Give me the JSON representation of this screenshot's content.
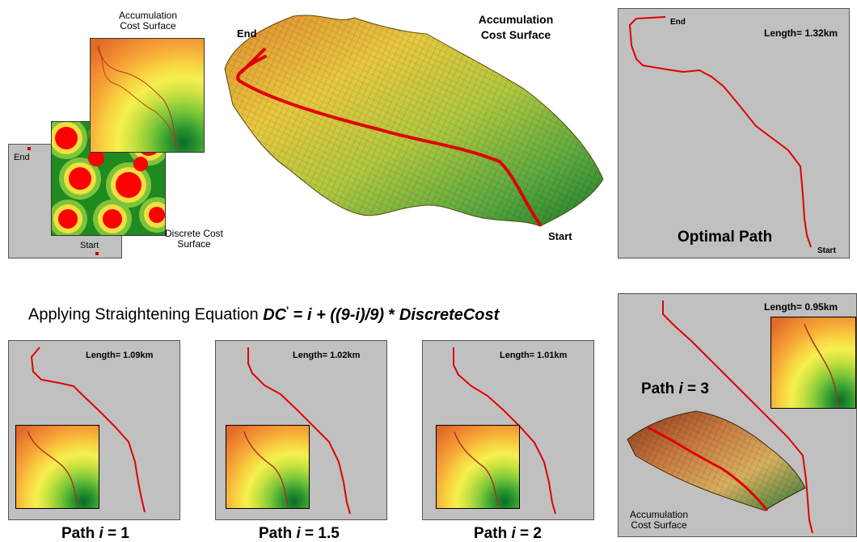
{
  "top": {
    "left_stack": {
      "accum_label": "Accumulation Cost Surface",
      "discrete_label": "Discrete Cost Surface",
      "end_label": "End",
      "start_label": "Start"
    },
    "surface3d": {
      "title": "Accumulation Cost Surface",
      "end_label": "End",
      "start_label": "Start"
    },
    "optimal": {
      "end_label": "End",
      "length": "Length= 1.32km",
      "caption": "Optimal Path",
      "start_label": "Start"
    }
  },
  "equation": {
    "prefix": "Applying Straightening Equation ",
    "lhs": "DC",
    "prime": "'",
    "eq": " = ",
    "i": "i",
    "rest": " + ((9-i)/9) ",
    "star": "* ",
    "dc": "DiscreteCost"
  },
  "bottom": [
    {
      "length": "Length= 1.09km",
      "caption_prefix": "Path ",
      "i": "i",
      "caption_suffix": " = 1"
    },
    {
      "length": "Length= 1.02km",
      "caption_prefix": "Path ",
      "i": "i",
      "caption_suffix": " = 1.5"
    },
    {
      "length": "Length= 1.01km",
      "caption_prefix": "Path ",
      "i": "i",
      "caption_suffix": " = 2"
    }
  ],
  "right_bottom": {
    "length": "Length= 0.95km",
    "caption_prefix": "Path ",
    "i": "i",
    "caption_suffix": " = 3",
    "surface_label": "Accumulation Cost Surface"
  },
  "colors": {
    "panel": "#c0c0c0",
    "path": "#e00000",
    "hot": "#ff0000",
    "green": "#1e7a1e"
  }
}
